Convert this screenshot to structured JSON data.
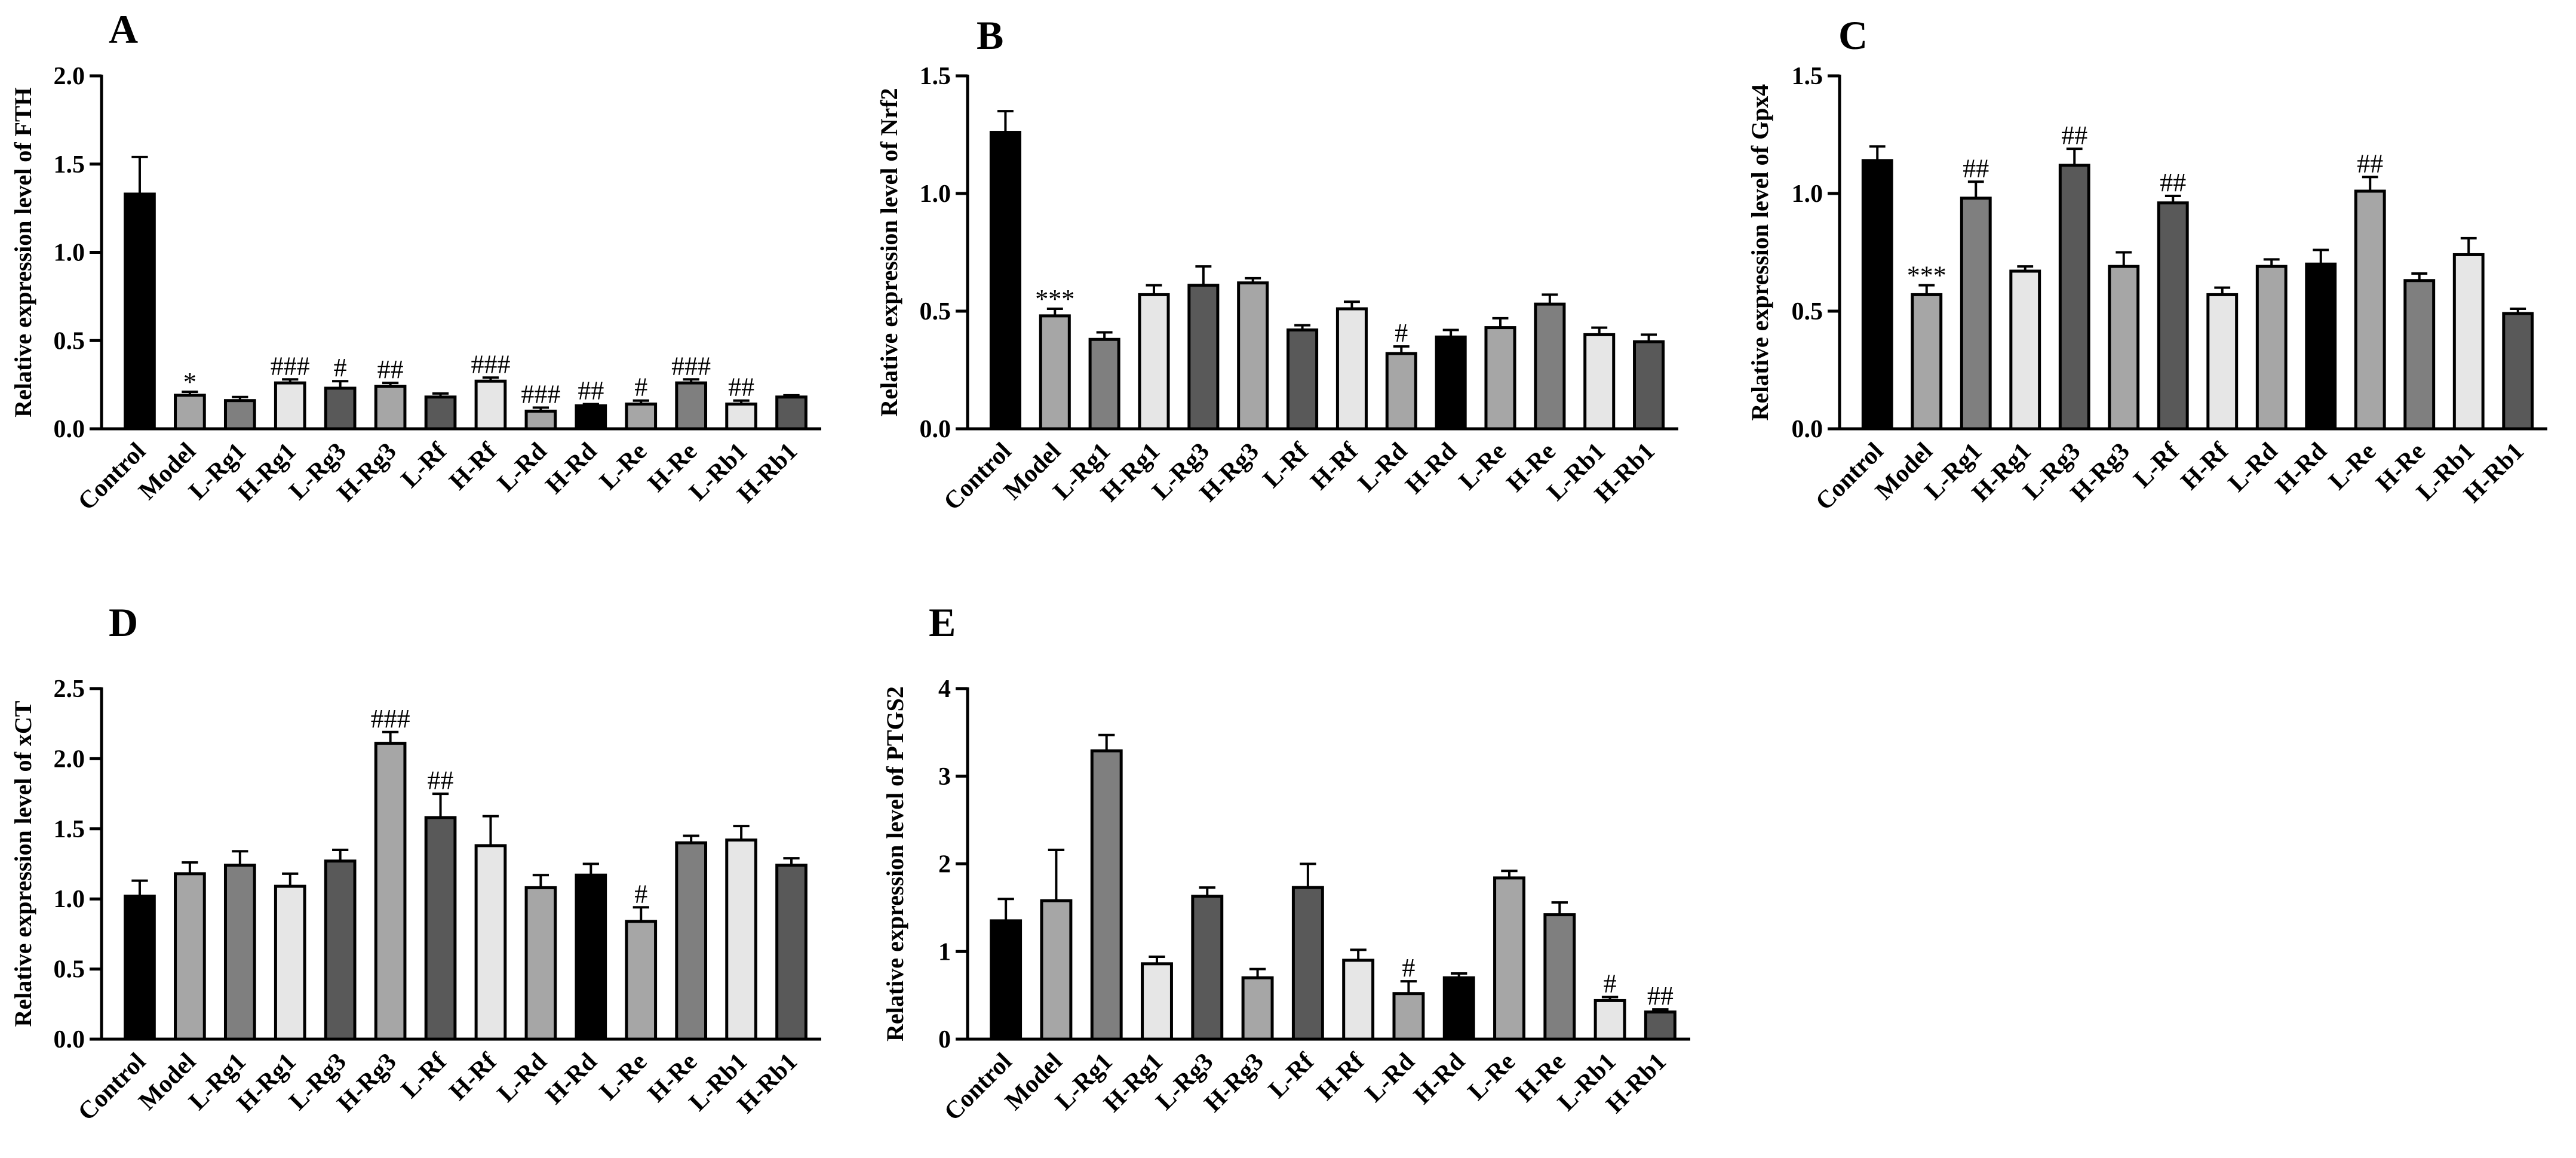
{
  "chart_data": [
    {
      "panel": "A",
      "type": "bar",
      "ylabel": "Relative expression level of FTH",
      "ylim": [
        0,
        2.0
      ],
      "ticks": [
        "0.0",
        "0.5",
        "1.0",
        "1.5",
        "2.0"
      ],
      "categories": [
        "Control",
        "Model",
        "L-Rg1",
        "H-Rg1",
        "L-Rg3",
        "H-Rg3",
        "L-Rf",
        "H-Rf",
        "L-Rd",
        "H-Rd",
        "L-Re",
        "H-Re",
        "L-Rb1",
        "H-Rb1"
      ],
      "values": [
        1.33,
        0.19,
        0.16,
        0.26,
        0.23,
        0.24,
        0.18,
        0.27,
        0.1,
        0.13,
        0.14,
        0.26,
        0.14,
        0.18
      ],
      "errors": [
        0.21,
        0.02,
        0.02,
        0.02,
        0.04,
        0.02,
        0.02,
        0.02,
        0.02,
        0.01,
        0.02,
        0.02,
        0.02,
        0.01
      ],
      "annotations": [
        "",
        "*",
        "",
        "###",
        "#",
        "##",
        "",
        "###",
        "###",
        "##",
        "#",
        "###",
        "##",
        ""
      ]
    },
    {
      "panel": "B",
      "type": "bar",
      "ylabel": "Relative expression level of Nrf2",
      "ylim": [
        0,
        1.5
      ],
      "ticks": [
        "0.0",
        "0.5",
        "1.0",
        "1.5"
      ],
      "categories": [
        "Control",
        "Model",
        "L-Rg1",
        "H-Rg1",
        "L-Rg3",
        "H-Rg3",
        "L-Rf",
        "H-Rf",
        "L-Rd",
        "H-Rd",
        "L-Re",
        "H-Re",
        "L-Rb1",
        "H-Rb1"
      ],
      "values": [
        1.26,
        0.48,
        0.38,
        0.57,
        0.61,
        0.62,
        0.42,
        0.51,
        0.32,
        0.39,
        0.43,
        0.53,
        0.4,
        0.37
      ],
      "errors": [
        0.09,
        0.03,
        0.03,
        0.04,
        0.08,
        0.02,
        0.02,
        0.03,
        0.03,
        0.03,
        0.04,
        0.04,
        0.03,
        0.03
      ],
      "annotations": [
        "",
        "***",
        "",
        "",
        "",
        "",
        "",
        "",
        "#",
        "",
        "",
        "",
        "",
        ""
      ]
    },
    {
      "panel": "C",
      "type": "bar",
      "ylabel": "Relative expression level of Gpx4",
      "ylim": [
        0,
        1.5
      ],
      "ticks": [
        "0.0",
        "0.5",
        "1.0",
        "1.5"
      ],
      "categories": [
        "Control",
        "Model",
        "L-Rg1",
        "H-Rg1",
        "L-Rg3",
        "H-Rg3",
        "L-Rf",
        "H-Rf",
        "L-Rd",
        "H-Rd",
        "L-Re",
        "H-Re",
        "L-Rb1",
        "H-Rb1"
      ],
      "values": [
        1.14,
        0.57,
        0.98,
        0.67,
        1.12,
        0.69,
        0.96,
        0.57,
        0.69,
        0.7,
        1.01,
        0.63,
        0.74,
        0.49
      ],
      "errors": [
        0.06,
        0.04,
        0.07,
        0.02,
        0.07,
        0.06,
        0.03,
        0.03,
        0.03,
        0.06,
        0.06,
        0.03,
        0.07,
        0.02
      ],
      "annotations": [
        "",
        "***",
        "##",
        "",
        "##",
        "",
        "##",
        "",
        "",
        "",
        "##",
        "",
        "",
        ""
      ]
    },
    {
      "panel": "D",
      "type": "bar",
      "ylabel": "Relative expression level of xCT",
      "ylim": [
        0,
        2.5
      ],
      "ticks": [
        "0.0",
        "0.5",
        "1.0",
        "1.5",
        "2.0",
        "2.5"
      ],
      "categories": [
        "Control",
        "Model",
        "L-Rg1",
        "H-Rg1",
        "L-Rg3",
        "H-Rg3",
        "L-Rf",
        "H-Rf",
        "L-Rd",
        "H-Rd",
        "L-Re",
        "H-Re",
        "L-Rb1",
        "H-Rb1"
      ],
      "values": [
        1.02,
        1.18,
        1.24,
        1.09,
        1.27,
        2.11,
        1.58,
        1.38,
        1.08,
        1.17,
        0.84,
        1.4,
        1.42,
        1.24
      ],
      "errors": [
        0.11,
        0.08,
        0.1,
        0.09,
        0.08,
        0.08,
        0.17,
        0.21,
        0.09,
        0.08,
        0.1,
        0.05,
        0.1,
        0.05
      ],
      "annotations": [
        "",
        "",
        "",
        "",
        "",
        "###",
        "##",
        "",
        "",
        "",
        "#",
        "",
        "",
        ""
      ]
    },
    {
      "panel": "E",
      "type": "bar",
      "ylabel": "Relative expression level of PTGS2",
      "ylim": [
        0,
        4
      ],
      "ticks": [
        "0",
        "1",
        "2",
        "3",
        "4"
      ],
      "categories": [
        "Control",
        "Model",
        "L-Rg1",
        "H-Rg1",
        "L-Rg3",
        "H-Rg3",
        "L-Rf",
        "H-Rf",
        "L-Rd",
        "H-Rd",
        "L-Re",
        "H-Re",
        "L-Rb1",
        "H-Rb1"
      ],
      "values": [
        1.35,
        1.58,
        3.29,
        0.86,
        1.63,
        0.7,
        1.73,
        0.9,
        0.52,
        0.7,
        1.84,
        1.42,
        0.44,
        0.31
      ],
      "errors": [
        0.25,
        0.58,
        0.18,
        0.08,
        0.1,
        0.1,
        0.27,
        0.12,
        0.14,
        0.05,
        0.08,
        0.14,
        0.04,
        0.03
      ],
      "annotations": [
        "",
        "",
        "",
        "",
        "",
        "",
        "",
        "",
        "#",
        "",
        "",
        "",
        "#",
        "##"
      ]
    }
  ],
  "styles": {
    "bar_colors": [
      "#000000",
      "#a6a6a6",
      "#7f7f7f",
      "#e6e6e6",
      "#595959",
      "#a6a6a6",
      "#595959",
      "#e6e6e6",
      "#a6a6a6",
      "#000000",
      "#a6a6a6",
      "#7f7f7f",
      "#e6e6e6",
      "#595959"
    ],
    "stroke": "#000000"
  }
}
